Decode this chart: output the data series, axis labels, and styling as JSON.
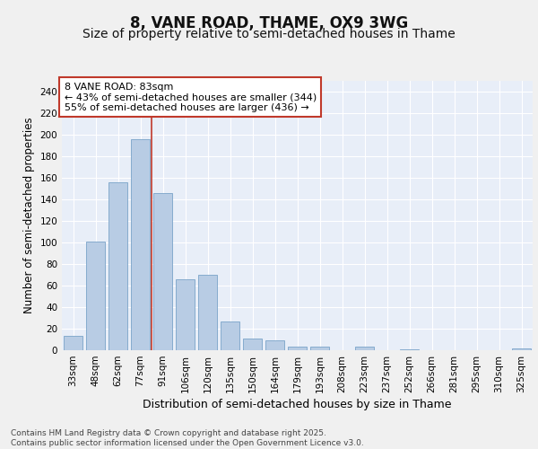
{
  "title": "8, VANE ROAD, THAME, OX9 3WG",
  "subtitle": "Size of property relative to semi-detached houses in Thame",
  "xlabel": "Distribution of semi-detached houses by size in Thame",
  "ylabel": "Number of semi-detached properties",
  "categories": [
    "33sqm",
    "48sqm",
    "62sqm",
    "77sqm",
    "91sqm",
    "106sqm",
    "120sqm",
    "135sqm",
    "150sqm",
    "164sqm",
    "179sqm",
    "193sqm",
    "208sqm",
    "223sqm",
    "237sqm",
    "252sqm",
    "266sqm",
    "281sqm",
    "295sqm",
    "310sqm",
    "325sqm"
  ],
  "values": [
    13,
    101,
    156,
    196,
    146,
    66,
    70,
    27,
    11,
    9,
    3,
    3,
    0,
    3,
    0,
    1,
    0,
    0,
    0,
    0,
    2
  ],
  "bar_color": "#b8cce4",
  "bar_edge_color": "#7aa3c8",
  "vline_x_index": 4,
  "vline_color": "#c0392b",
  "annotation_text": "8 VANE ROAD: 83sqm\n← 43% of semi-detached houses are smaller (344)\n55% of semi-detached houses are larger (436) →",
  "annotation_box_color": "#ffffff",
  "annotation_box_edge_color": "#c0392b",
  "ylim": [
    0,
    250
  ],
  "yticks": [
    0,
    20,
    40,
    60,
    80,
    100,
    120,
    140,
    160,
    180,
    200,
    220,
    240
  ],
  "background_color": "#e8eef8",
  "grid_color": "#ffffff",
  "fig_background_color": "#f0f0f0",
  "footer_text": "Contains HM Land Registry data © Crown copyright and database right 2025.\nContains public sector information licensed under the Open Government Licence v3.0.",
  "title_fontsize": 12,
  "subtitle_fontsize": 10,
  "xlabel_fontsize": 9,
  "ylabel_fontsize": 8.5,
  "tick_fontsize": 7.5,
  "annotation_fontsize": 8,
  "footer_fontsize": 6.5
}
